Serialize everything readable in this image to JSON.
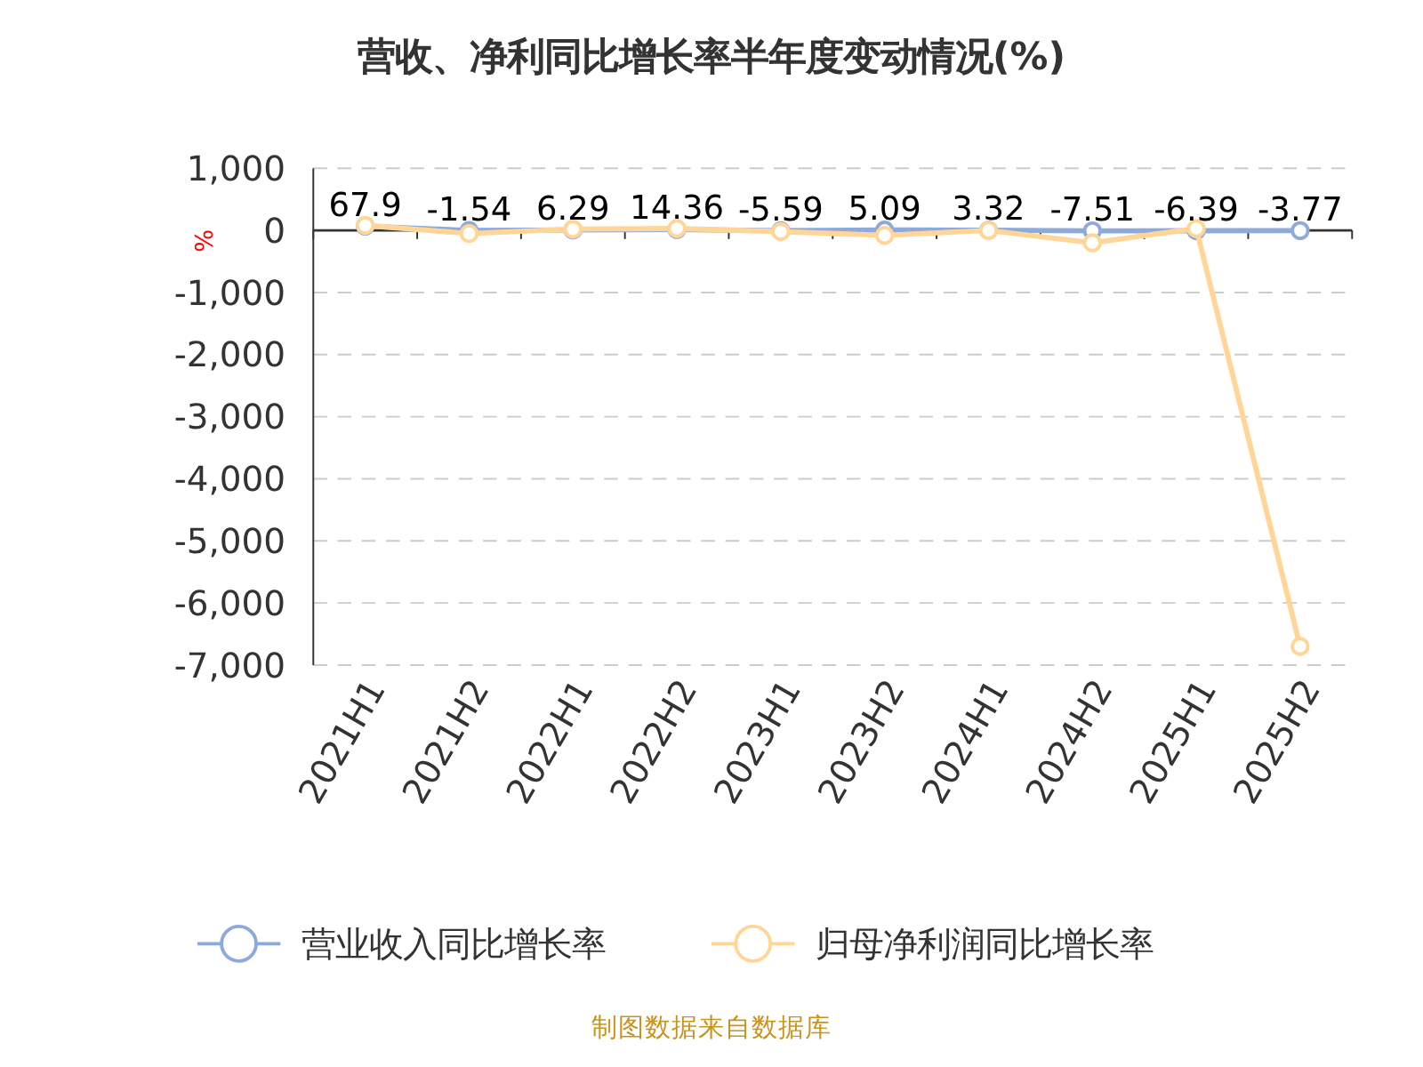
{
  "chart_data": {
    "type": "line",
    "title": "营收、净利同比增长率半年度变动情况(%)",
    "ylabel": "%",
    "categories": [
      "2021H1",
      "2021H2",
      "2022H1",
      "2022H2",
      "2023H1",
      "2023H2",
      "2024H1",
      "2024H2",
      "2025H1",
      "2025H2"
    ],
    "series": [
      {
        "name": "营业收入同比增长率",
        "color": "#8eaadb",
        "values": [
          67.9,
          -1.54,
          6.29,
          14.36,
          -5.59,
          5.09,
          3.32,
          -7.51,
          -6.39,
          -3.77
        ],
        "value_labels": [
          "67.9",
          "-1.54",
          "6.29",
          "14.36",
          "-5.59",
          "5.09",
          "3.32",
          "-7.51",
          "-6.39",
          "-3.77"
        ]
      },
      {
        "name": "归母净利润同比增长率",
        "color": "#ffd698",
        "values": [
          80,
          -50,
          20,
          30,
          -20,
          -80,
          0,
          -200,
          30,
          -6700
        ]
      }
    ],
    "ylim": [
      -7000,
      1000
    ],
    "yticks": [
      {
        "value": 1000,
        "label": "1,000"
      },
      0,
      {
        "value": -1000,
        "label": "-1,000"
      },
      {
        "value": -2000,
        "label": "-2,000"
      },
      {
        "value": -3000,
        "label": "-3,000"
      },
      {
        "value": -4000,
        "label": "-4,000"
      },
      {
        "value": -5000,
        "label": "-5,000"
      },
      {
        "value": -6000,
        "label": "-6,000"
      },
      {
        "value": -7000,
        "label": "-7,000"
      }
    ],
    "grid": "y",
    "legend": "bottom",
    "marker": "circle",
    "line_style": "solid",
    "annotations": [
      "制图数据来自数据库"
    ]
  }
}
